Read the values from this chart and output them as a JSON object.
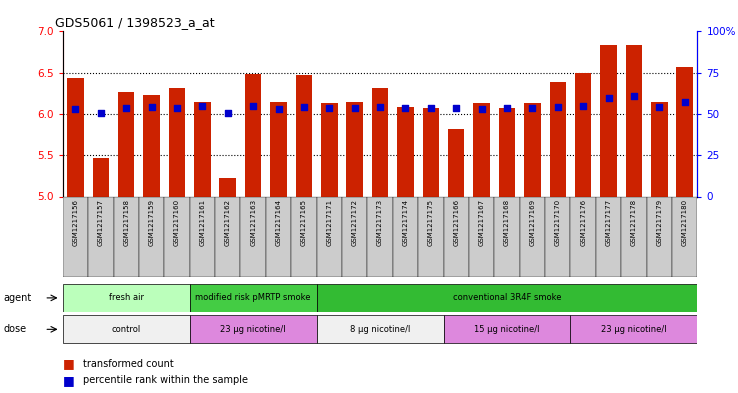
{
  "title": "GDS5061 / 1398523_a_at",
  "samples": [
    "GSM1217156",
    "GSM1217157",
    "GSM1217158",
    "GSM1217159",
    "GSM1217160",
    "GSM1217161",
    "GSM1217162",
    "GSM1217163",
    "GSM1217164",
    "GSM1217165",
    "GSM1217171",
    "GSM1217172",
    "GSM1217173",
    "GSM1217174",
    "GSM1217175",
    "GSM1217166",
    "GSM1217167",
    "GSM1217168",
    "GSM1217169",
    "GSM1217170",
    "GSM1217176",
    "GSM1217177",
    "GSM1217178",
    "GSM1217179",
    "GSM1217180"
  ],
  "bar_values": [
    6.44,
    5.47,
    6.27,
    6.23,
    6.32,
    6.14,
    5.22,
    6.48,
    6.14,
    6.47,
    6.13,
    6.14,
    6.32,
    6.08,
    6.07,
    5.82,
    6.13,
    6.07,
    6.13,
    6.39,
    6.5,
    6.84,
    6.84,
    6.14,
    6.57
  ],
  "dot_values": [
    6.06,
    6.01,
    6.07,
    6.08,
    6.07,
    6.1,
    6.01,
    6.1,
    6.06,
    6.09,
    6.07,
    6.07,
    6.09,
    6.07,
    6.07,
    6.07,
    6.06,
    6.07,
    6.07,
    6.09,
    6.1,
    6.19,
    6.22,
    6.08,
    6.15
  ],
  "bar_color": "#cc2200",
  "dot_color": "#0000cc",
  "ylim_left": [
    5.0,
    7.0
  ],
  "yticks_left": [
    5.0,
    5.5,
    6.0,
    6.5,
    7.0
  ],
  "ylim_right": [
    0,
    100
  ],
  "yticks_right": [
    0,
    25,
    50,
    75,
    100
  ],
  "yticklabels_right": [
    "0",
    "25",
    "50",
    "75",
    "100%"
  ],
  "hlines": [
    5.5,
    6.0,
    6.5
  ],
  "agent_groups": [
    {
      "label": "fresh air",
      "start": 0,
      "end": 4,
      "color": "#bbffbb"
    },
    {
      "label": "modified risk pMRTP smoke",
      "start": 5,
      "end": 9,
      "color": "#44cc44"
    },
    {
      "label": "conventional 3R4F smoke",
      "start": 10,
      "end": 24,
      "color": "#33bb33"
    }
  ],
  "dose_groups": [
    {
      "label": "control",
      "start": 0,
      "end": 4,
      "color": "#f0f0f0"
    },
    {
      "label": "23 μg nicotine/l",
      "start": 5,
      "end": 9,
      "color": "#dd88dd"
    },
    {
      "label": "8 μg nicotine/l",
      "start": 10,
      "end": 14,
      "color": "#f0f0f0"
    },
    {
      "label": "15 μg nicotine/l",
      "start": 15,
      "end": 19,
      "color": "#dd88dd"
    },
    {
      "label": "23 μg nicotine/l",
      "start": 20,
      "end": 24,
      "color": "#dd88dd"
    }
  ],
  "legend_bar_label": "transformed count",
  "legend_dot_label": "percentile rank within the sample",
  "agent_label": "agent",
  "dose_label": "dose"
}
